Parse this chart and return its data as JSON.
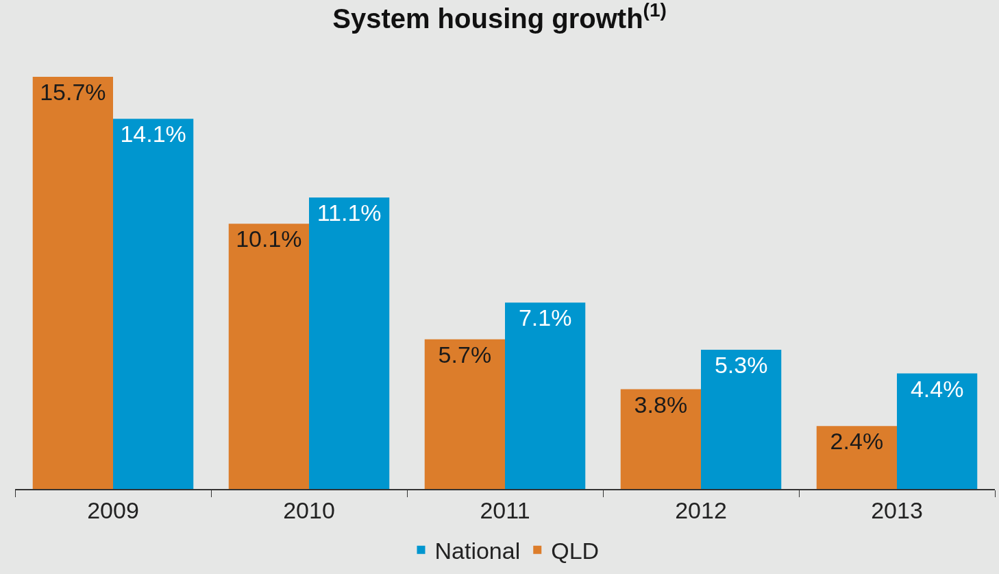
{
  "chart_data": {
    "type": "bar",
    "title": "System housing growth$^{(1)}$",
    "categories": [
      "2009",
      "2010",
      "2011",
      "2012",
      "2013"
    ],
    "series": [
      {
        "name": "QLD",
        "color": "#dc7d2b",
        "values": [
          15.7,
          10.1,
          5.7,
          3.8,
          2.4
        ],
        "value_labels": [
          "15.7%",
          "10.1%",
          "5.7%",
          "3.8%",
          "2.4%"
        ]
      },
      {
        "name": "National",
        "color": "#0096cf",
        "values": [
          14.1,
          11.1,
          7.1,
          5.3,
          4.4
        ],
        "value_labels": [
          "14.1%",
          "11.1%",
          "7.1%",
          "5.3%",
          "4.4%"
        ]
      }
    ],
    "legend": "bottom",
    "grid": false
  }
}
